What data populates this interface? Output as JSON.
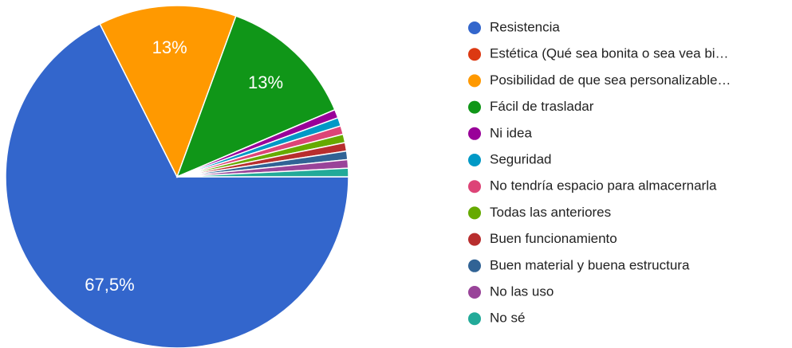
{
  "chart_data": {
    "type": "pie",
    "categories": [
      "Resistencia",
      "Estética (Qué sea bonita o sea vea bi…",
      "Posibilidad de que sea personalizable…",
      "Fácil de trasladar",
      "Ni idea",
      "Seguridad",
      "No tendría espacio para almacernarla",
      "Todas las anteriores",
      "Buen funcionamiento",
      "Buen material y buena estructura",
      "No las uso",
      "No sé"
    ],
    "values": [
      67.5,
      0,
      13,
      13,
      0.8,
      0.8,
      0.8,
      0.8,
      0.8,
      0.8,
      0.8,
      0.8
    ],
    "value_labels": [
      "67,5%",
      null,
      "13%",
      "13%",
      null,
      null,
      null,
      null,
      null,
      null,
      null,
      null
    ],
    "colors": [
      "#3366cc",
      "#dc3912",
      "#ff9900",
      "#109618",
      "#990099",
      "#0099c6",
      "#dd4477",
      "#66aa00",
      "#b82e2e",
      "#316395",
      "#994499",
      "#22aa99"
    ],
    "legend": "right"
  }
}
